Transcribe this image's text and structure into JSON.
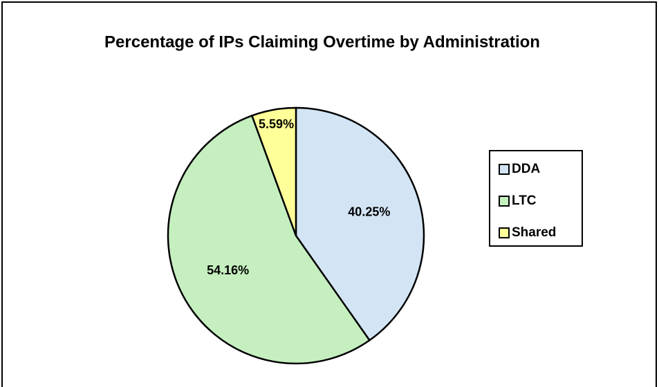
{
  "chart_data": {
    "type": "pie",
    "title": "Percentage of IPs Claiming Overtime by Administration",
    "categories": [
      "DDA",
      "LTC",
      "Shared"
    ],
    "values": [
      40.25,
      54.16,
      5.59
    ],
    "value_labels": [
      "40.25%",
      "54.16%",
      "5.59%"
    ],
    "colors": [
      "#d3e5f5",
      "#c6efc0",
      "#ffff99"
    ],
    "legend": "right"
  }
}
